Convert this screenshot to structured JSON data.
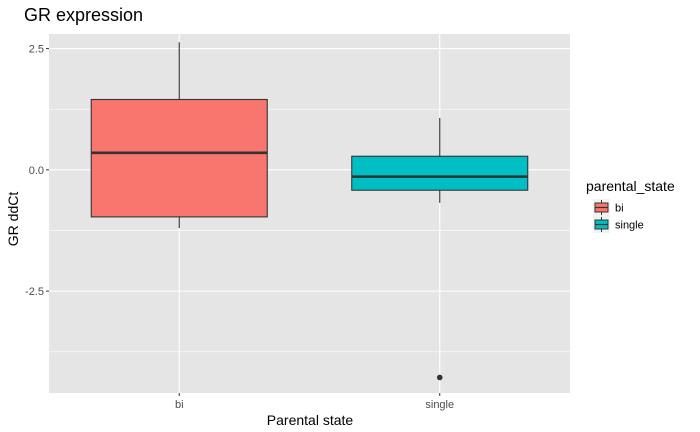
{
  "chart_data": {
    "type": "boxplot",
    "title": "GR expression",
    "xlabel": "Parental state",
    "ylabel": "GR ddCt",
    "categories": [
      "bi",
      "single"
    ],
    "yticks": [
      {
        "value": 2.5,
        "label": "2.5"
      },
      {
        "value": 0,
        "label": "0.0"
      },
      {
        "value": -2.5,
        "label": "-2.5"
      }
    ],
    "ylim": [
      -4.6,
      2.8
    ],
    "grid": true,
    "legend": {
      "title": "parental_state",
      "position": "right",
      "entries": [
        "bi",
        "single"
      ]
    },
    "boxes": [
      {
        "category": "bi",
        "whisker_low": -1.2,
        "q1": -0.97,
        "median": 0.35,
        "q3": 1.45,
        "whisker_high": 2.63,
        "outliers": [],
        "color": "#F8766D"
      },
      {
        "category": "single",
        "whisker_low": -0.68,
        "q1": -0.42,
        "median": -0.14,
        "q3": 0.28,
        "whisker_high": 1.07,
        "outliers": [
          -4.28
        ],
        "color": "#00BFC4"
      }
    ],
    "colors": {
      "panel": "#e5e5e5",
      "grid": "#ffffff",
      "line": "#333333"
    }
  }
}
